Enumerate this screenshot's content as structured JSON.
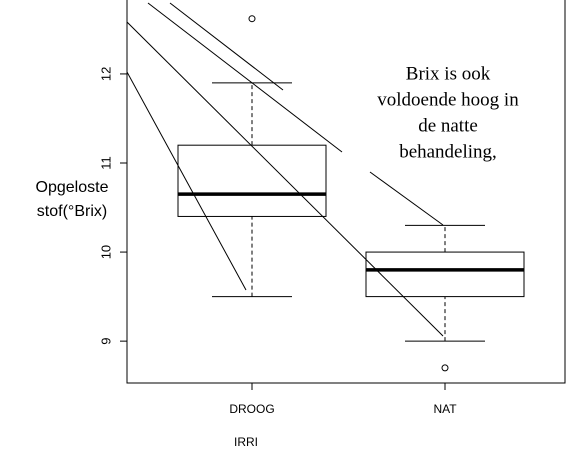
{
  "chart_data": {
    "type": "box",
    "ylabel": [
      "Opgeloste",
      "stof(°Brix)"
    ],
    "xlabel": "IRRI",
    "categories": [
      "DROOG",
      "NAT"
    ],
    "boxes": [
      {
        "whisker_low": 9.5,
        "q1": 10.4,
        "median": 10.65,
        "q3": 11.2,
        "whisker_high": 11.9,
        "outliers": [
          12.62
        ]
      },
      {
        "whisker_low": 9.0,
        "q1": 9.5,
        "median": 9.8,
        "q3": 10.0,
        "whisker_high": 10.3,
        "outliers": [
          8.7
        ]
      }
    ],
    "color": "#000000",
    "ylim": [
      8.53,
      12.83
    ],
    "yticks": [
      9,
      10,
      11,
      12
    ],
    "annotation": [
      "Brix is ook",
      "voldoende hoog in",
      "de natte",
      "behandeling,"
    ]
  }
}
